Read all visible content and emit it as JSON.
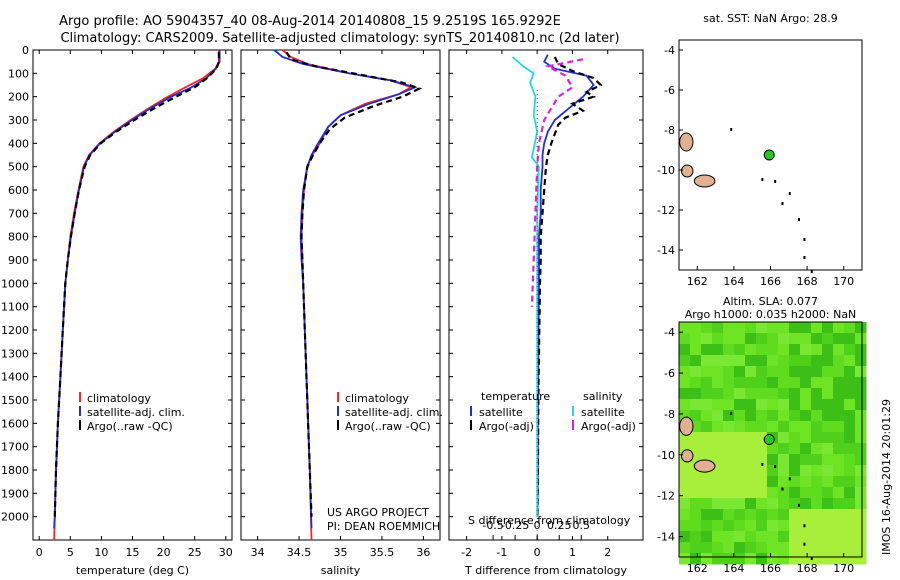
{
  "title": {
    "line1": "Argo profile: AO 5904357_40 08-Aug-2014 20140808_15 9.2519S 165.9292E",
    "line2": "Climatology: CARS2009. Satellite-adjusted climatology: synTS_20140810.nc (2d later)"
  },
  "colors": {
    "climatology": "#ff2222",
    "satellite": "#1f2fd8",
    "argo": "#000000",
    "sat_diff_s": "#22d8e8",
    "argo_diff_s": "#e020d8"
  },
  "chart_data": [
    {
      "type": "line",
      "id": "temperature",
      "xlabel": "temperature (deg C)",
      "xlim": [
        -1,
        31
      ],
      "ylim": [
        2100,
        0
      ],
      "xticks": [
        0,
        5,
        10,
        15,
        20,
        25,
        30
      ],
      "yticks": [
        0,
        100,
        200,
        300,
        400,
        500,
        600,
        700,
        800,
        900,
        1000,
        1100,
        1200,
        1300,
        1400,
        1500,
        1600,
        1700,
        1800,
        1900,
        2000
      ],
      "legend": [
        "climatology",
        "satellite-adj. clim.",
        "Argo(..raw -QC)"
      ],
      "series": [
        {
          "name": "climatology",
          "color": "#ff2222",
          "dash": "solid",
          "points": [
            [
              28.9,
              0
            ],
            [
              28.9,
              50
            ],
            [
              28.3,
              80
            ],
            [
              26.4,
              120
            ],
            [
              23.5,
              160
            ],
            [
              20.7,
              200
            ],
            [
              17.6,
              250
            ],
            [
              14.7,
              300
            ],
            [
              12.0,
              350
            ],
            [
              9.7,
              400
            ],
            [
              8.0,
              450
            ],
            [
              7.1,
              500
            ],
            [
              6.3,
              600
            ],
            [
              5.6,
              700
            ],
            [
              5.0,
              800
            ],
            [
              4.6,
              900
            ],
            [
              4.2,
              1000
            ],
            [
              3.8,
              1200
            ],
            [
              3.4,
              1400
            ],
            [
              3.0,
              1600
            ],
            [
              2.7,
              1800
            ],
            [
              2.5,
              2000
            ],
            [
              2.4,
              2100
            ]
          ]
        },
        {
          "name": "satellite-adj. clim.",
          "color": "#1f2fd8",
          "dash": "solid",
          "points": [
            [
              29.0,
              0
            ],
            [
              29.0,
              50
            ],
            [
              28.4,
              80
            ],
            [
              26.9,
              120
            ],
            [
              24.5,
              160
            ],
            [
              21.2,
              200
            ],
            [
              17.9,
              250
            ],
            [
              14.9,
              300
            ],
            [
              12.2,
              350
            ],
            [
              9.8,
              400
            ],
            [
              8.1,
              450
            ],
            [
              7.2,
              500
            ],
            [
              6.4,
              600
            ],
            [
              5.7,
              700
            ],
            [
              5.1,
              800
            ],
            [
              4.6,
              900
            ],
            [
              4.2,
              1000
            ],
            [
              3.8,
              1200
            ],
            [
              3.4,
              1400
            ],
            [
              3.0,
              1600
            ],
            [
              2.7,
              1800
            ],
            [
              2.5,
              2000
            ],
            [
              2.4,
              2050
            ]
          ]
        },
        {
          "name": "Argo(..raw -QC)",
          "color": "#000000",
          "dash": "dashed",
          "points": [
            [
              28.9,
              10
            ],
            [
              28.9,
              50
            ],
            [
              28.5,
              80
            ],
            [
              27.0,
              120
            ],
            [
              25.0,
              160
            ],
            [
              22.0,
              200
            ],
            [
              18.5,
              250
            ],
            [
              15.3,
              300
            ],
            [
              12.4,
              350
            ],
            [
              9.9,
              400
            ],
            [
              8.2,
              450
            ],
            [
              7.3,
              500
            ],
            [
              6.4,
              600
            ],
            [
              5.7,
              700
            ],
            [
              5.1,
              800
            ],
            [
              4.6,
              900
            ],
            [
              4.2,
              1000
            ],
            [
              3.8,
              1200
            ],
            [
              3.4,
              1400
            ],
            [
              3.0,
              1600
            ],
            [
              2.7,
              1800
            ],
            [
              2.5,
              2000
            ]
          ]
        }
      ]
    },
    {
      "type": "line",
      "id": "salinity",
      "xlabel": "salinity",
      "xlim": [
        33.8,
        36.2
      ],
      "ylim": [
        2100,
        0
      ],
      "xticks": [
        34,
        34.5,
        35,
        35.5,
        36
      ],
      "legend": [
        "climatology",
        "satellite-adj. clim.",
        "Argo(..raw -QC)"
      ],
      "annotation": [
        "US ARGO PROJECT",
        "PI: DEAN ROEMMICH"
      ],
      "series": [
        {
          "name": "climatology",
          "color": "#ff2222",
          "dash": "solid",
          "points": [
            [
              34.3,
              0
            ],
            [
              34.4,
              30
            ],
            [
              34.6,
              60
            ],
            [
              35.1,
              100
            ],
            [
              35.6,
              130
            ],
            [
              35.85,
              160
            ],
            [
              35.7,
              190
            ],
            [
              35.3,
              230
            ],
            [
              35.0,
              280
            ],
            [
              34.85,
              330
            ],
            [
              34.75,
              400
            ],
            [
              34.66,
              450
            ],
            [
              34.6,
              500
            ],
            [
              34.56,
              600
            ],
            [
              34.54,
              700
            ],
            [
              34.53,
              800
            ],
            [
              34.54,
              900
            ],
            [
              34.55,
              1000
            ],
            [
              34.57,
              1200
            ],
            [
              34.6,
              1500
            ],
            [
              34.63,
              1800
            ],
            [
              34.65,
              2100
            ]
          ]
        },
        {
          "name": "satellite-adj. clim.",
          "color": "#1f2fd8",
          "dash": "solid",
          "points": [
            [
              34.2,
              0
            ],
            [
              34.3,
              30
            ],
            [
              34.55,
              60
            ],
            [
              35.1,
              100
            ],
            [
              35.6,
              130
            ],
            [
              35.9,
              160
            ],
            [
              35.7,
              190
            ],
            [
              35.35,
              230
            ],
            [
              35.0,
              280
            ],
            [
              34.85,
              330
            ],
            [
              34.73,
              400
            ],
            [
              34.65,
              450
            ],
            [
              34.6,
              500
            ],
            [
              34.55,
              600
            ],
            [
              34.53,
              700
            ],
            [
              34.52,
              800
            ],
            [
              34.53,
              900
            ],
            [
              34.55,
              1000
            ],
            [
              34.57,
              1200
            ],
            [
              34.6,
              1500
            ],
            [
              34.63,
              1800
            ],
            [
              34.65,
              2050
            ]
          ]
        },
        {
          "name": "Argo(..raw -QC)",
          "color": "#000000",
          "dash": "dashed",
          "points": [
            [
              34.35,
              10
            ],
            [
              34.4,
              40
            ],
            [
              34.7,
              70
            ],
            [
              35.3,
              110
            ],
            [
              35.75,
              140
            ],
            [
              35.95,
              165
            ],
            [
              35.75,
              200
            ],
            [
              35.4,
              240
            ],
            [
              35.05,
              290
            ],
            [
              34.87,
              340
            ],
            [
              34.75,
              400
            ],
            [
              34.67,
              450
            ],
            [
              34.6,
              500
            ],
            [
              34.56,
              600
            ],
            [
              34.54,
              700
            ],
            [
              34.53,
              800
            ],
            [
              34.54,
              900
            ],
            [
              34.55,
              1000
            ],
            [
              34.57,
              1200
            ],
            [
              34.6,
              1500
            ],
            [
              34.63,
              1800
            ],
            [
              34.65,
              2000
            ]
          ]
        }
      ]
    },
    {
      "type": "line",
      "id": "differences",
      "xlabel": "T difference from climatology",
      "xlabel2": "S difference from climatology",
      "xlim": [
        -2.5,
        3
      ],
      "ylim": [
        2100,
        0
      ],
      "xticks": [
        -2,
        -1,
        0,
        1,
        2
      ],
      "x2ticks": [
        -0.5,
        -0.25,
        0,
        0.25,
        0.5
      ],
      "x2ticklabels": [
        "-0.5",
        "-0.25",
        "0",
        "0.25",
        "0.5"
      ],
      "legend_groups": [
        "temperature",
        "salinity"
      ],
      "legend": [
        "satellite",
        "Argo(-adj)",
        "satellite",
        "Argo(-adj)"
      ],
      "series": [
        {
          "name": "satellite",
          "group": "temperature",
          "color": "#1f2fd8",
          "dash": "solid",
          "points": [
            [
              0.3,
              20
            ],
            [
              0.2,
              50
            ],
            [
              0.5,
              80
            ],
            [
              1.4,
              110
            ],
            [
              1.6,
              150
            ],
            [
              1.3,
              200
            ],
            [
              0.9,
              250
            ],
            [
              0.5,
              300
            ],
            [
              0.3,
              350
            ],
            [
              0.2,
              400
            ],
            [
              0.15,
              450
            ],
            [
              0.15,
              500
            ],
            [
              0.1,
              600
            ],
            [
              0.1,
              700
            ],
            [
              0.05,
              800
            ],
            [
              0.05,
              900
            ],
            [
              0.05,
              1000
            ],
            [
              0.04,
              1200
            ],
            [
              0.03,
              1400
            ],
            [
              0.02,
              1600
            ],
            [
              0.02,
              1800
            ],
            [
              0.01,
              2000
            ]
          ]
        },
        {
          "name": "Argo(-adj)",
          "group": "temperature",
          "color": "#000000",
          "dash": "dashed",
          "points": [
            [
              0.5,
              30
            ],
            [
              0.6,
              60
            ],
            [
              1.0,
              90
            ],
            [
              1.6,
              120
            ],
            [
              1.8,
              150
            ],
            [
              1.4,
              180
            ],
            [
              1.6,
              200
            ],
            [
              1.0,
              230
            ],
            [
              1.3,
              260
            ],
            [
              0.8,
              290
            ],
            [
              0.6,
              320
            ],
            [
              0.5,
              360
            ],
            [
              0.4,
              400
            ],
            [
              0.3,
              450
            ],
            [
              0.25,
              500
            ],
            [
              0.2,
              600
            ],
            [
              0.15,
              700
            ],
            [
              0.1,
              800
            ],
            [
              0.1,
              900
            ],
            [
              0.08,
              1000
            ],
            [
              0.06,
              1200
            ],
            [
              0.04,
              1400
            ],
            [
              0.03,
              1600
            ],
            [
              0.02,
              1800
            ],
            [
              0.01,
              2000
            ]
          ]
        },
        {
          "name": "satellite",
          "group": "salinity",
          "color": "#22d8e8",
          "dash": "solid",
          "points": [
            [
              -0.7,
              30
            ],
            [
              -0.4,
              70
            ],
            [
              -0.1,
              100
            ],
            [
              -0.2,
              140
            ],
            [
              -0.05,
              200
            ],
            [
              -0.1,
              280
            ],
            [
              0.0,
              350
            ],
            [
              -0.15,
              460
            ],
            [
              0.05,
              500
            ],
            [
              0.0,
              700
            ],
            [
              0.0,
              1000
            ],
            [
              0.0,
              1500
            ],
            [
              0.0,
              2000
            ]
          ]
        },
        {
          "name": "Argo(-adj)",
          "group": "salinity",
          "color": "#e020d8",
          "dash": "dashed",
          "points": [
            [
              1.3,
              40
            ],
            [
              0.3,
              70
            ],
            [
              0.8,
              110
            ],
            [
              1.0,
              160
            ],
            [
              0.6,
              200
            ],
            [
              0.2,
              300
            ],
            [
              0.05,
              400
            ],
            [
              0.0,
              500
            ],
            [
              -0.05,
              700
            ],
            [
              -0.1,
              900
            ],
            [
              -0.15,
              1100
            ]
          ]
        }
      ]
    },
    {
      "type": "map",
      "id": "sst_map",
      "title": "sat. SST: NaN Argo: 28.9",
      "xlim": [
        161,
        171
      ],
      "ylim": [
        -15,
        -3.5
      ],
      "xticks": [
        162,
        164,
        166,
        168,
        170
      ],
      "yticks": [
        -4,
        -6,
        -8,
        -10,
        -12,
        -14
      ],
      "marker": {
        "lon": 165.93,
        "lat": -9.25,
        "color": "#22cc22"
      }
    },
    {
      "type": "map",
      "id": "sla_map",
      "title": "Altim. SLA: 0.077",
      "subtitle": "Argo h1000: 0.035 h2000: NaN",
      "xlim": [
        161,
        171
      ],
      "ylim": [
        -15,
        -3.5
      ],
      "xticks": [
        162,
        164,
        166,
        168,
        170
      ],
      "yticks": [
        -4,
        -6,
        -8,
        -10,
        -12,
        -14
      ],
      "marker": {
        "lon": 165.93,
        "lat": -9.25,
        "color": "#22cc22"
      }
    }
  ],
  "side_label": "IMOS 16-Aug-2014 20:01:29"
}
